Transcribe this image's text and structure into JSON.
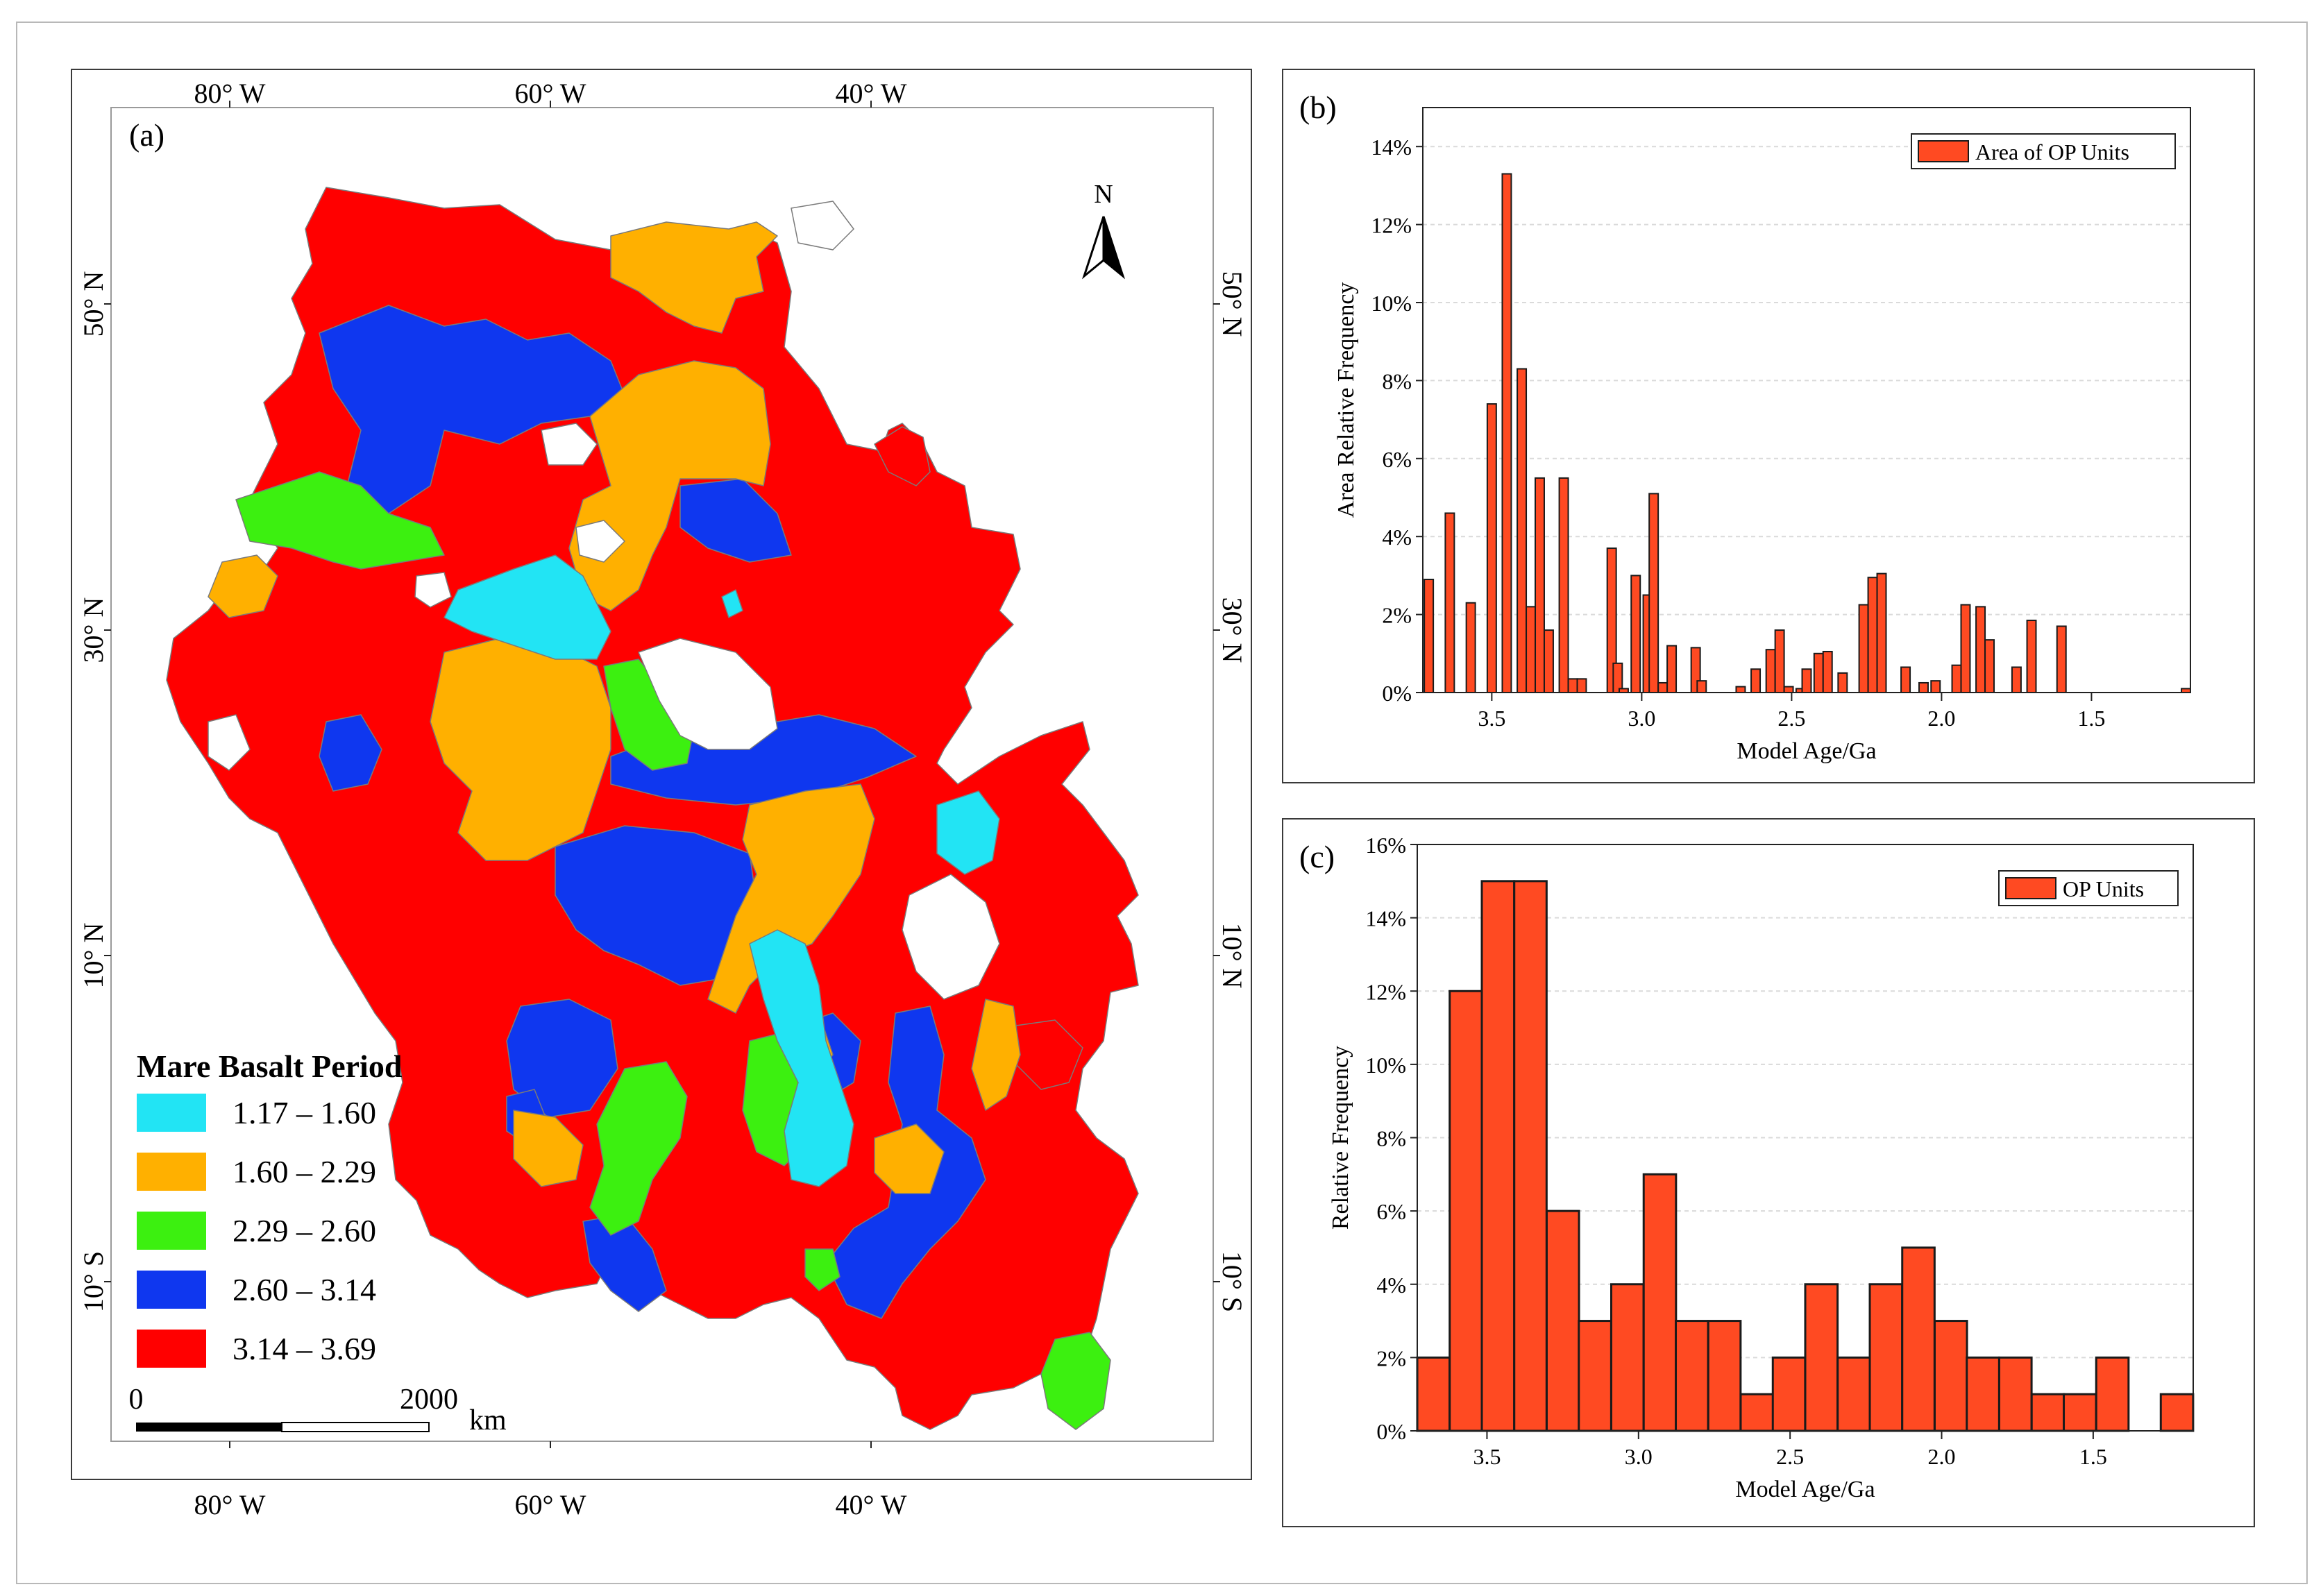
{
  "colors": {
    "bar_fill": "#ff4a22",
    "bar_stroke": "#1a1a1a",
    "grid": "#dadada",
    "period_1": "#22e4f4",
    "period_2": "#ffb000",
    "period_3": "#3cf010",
    "period_4": "#0f37ef",
    "period_5": "#ff0000"
  },
  "panel_a": {
    "label": "(a)",
    "top_lon_labels": [
      "80° W",
      "60° W",
      "40° W"
    ],
    "bottom_lon_labels": [
      "80° W",
      "60° W",
      "40° W"
    ],
    "lat_labels": [
      "50° N",
      "30° N",
      "10° N",
      "10° S"
    ],
    "north_label": "N",
    "legend_title": "Mare Basalt Period",
    "legend_items": [
      {
        "range": "1.17 – 1.60",
        "color": "#22e4f4"
      },
      {
        "range": "1.60 – 2.29",
        "color": "#ffb000"
      },
      {
        "range": "2.29 – 2.60",
        "color": "#3cf010"
      },
      {
        "range": "2.60 – 3.14",
        "color": "#0f37ef"
      },
      {
        "range": "3.14 – 3.69",
        "color": "#ff0000"
      }
    ],
    "scale_start": "0",
    "scale_end": "2000",
    "scale_unit": "km"
  },
  "chart_data": [
    {
      "panel": "(b)",
      "type": "bar",
      "ylabel": "Area Relative Frequency",
      "xlabel": "Model Age/Ga",
      "legend": "Area of OP Units",
      "legend_position": "top-right",
      "xlim": [
        3.73,
        1.17
      ],
      "ylim": [
        0,
        15
      ],
      "x_ticks": [
        {
          "value": 3.5,
          "label": "3.5"
        },
        {
          "value": 3.0,
          "label": "3.0"
        },
        {
          "value": 2.5,
          "label": "2.5"
        },
        {
          "value": 2.0,
          "label": "2.0"
        },
        {
          "value": 1.5,
          "label": "1.5"
        }
      ],
      "y_ticks": [
        {
          "value": 0,
          "label": "0%"
        },
        {
          "value": 2,
          "label": "2%"
        },
        {
          "value": 4,
          "label": "4%"
        },
        {
          "value": 6,
          "label": "6%"
        },
        {
          "value": 8,
          "label": "8%"
        },
        {
          "value": 10,
          "label": "10%"
        },
        {
          "value": 12,
          "label": "12%"
        },
        {
          "value": 14,
          "label": "14%"
        }
      ],
      "grid": true,
      "bar_width": 0.03,
      "x": [
        3.71,
        3.64,
        3.57,
        3.5,
        3.45,
        3.4,
        3.37,
        3.34,
        3.31,
        3.26,
        3.23,
        3.2,
        3.1,
        3.08,
        3.06,
        3.02,
        2.98,
        2.96,
        2.93,
        2.9,
        2.88,
        2.82,
        2.8,
        2.67,
        2.62,
        2.57,
        2.54,
        2.51,
        2.47,
        2.45,
        2.41,
        2.38,
        2.33,
        2.26,
        2.23,
        2.2,
        2.18,
        2.12,
        2.06,
        2.02,
        2.0,
        1.95,
        1.92,
        1.87,
        1.84,
        1.8,
        1.75,
        1.7,
        1.6,
        1.49,
        1.44,
        1.185
      ],
      "values": [
        2.9,
        4.6,
        2.3,
        7.4,
        13.3,
        8.3,
        2.2,
        5.5,
        1.6,
        5.5,
        0.35,
        0.35,
        3.7,
        0.75,
        0.1,
        3.0,
        2.5,
        5.1,
        0.25,
        1.2,
        0.0,
        1.15,
        0.3,
        0.15,
        0.6,
        1.1,
        1.6,
        0.15,
        0.1,
        0.6,
        1.0,
        1.05,
        0.5,
        2.25,
        2.95,
        3.05,
        0.0,
        0.65,
        0.25,
        0.3,
        0.0,
        0.7,
        2.25,
        2.2,
        1.35,
        0.0,
        0.65,
        1.85,
        1.7,
        0.0,
        0.0,
        0.1
      ]
    },
    {
      "panel": "(c)",
      "type": "bar",
      "ylabel": "Relative Frequency",
      "xlabel": "Model Age/Ga",
      "legend": "OP Units",
      "legend_position": "top-right",
      "xlim": [
        3.73,
        1.17
      ],
      "ylim": [
        0,
        16
      ],
      "x_ticks": [
        {
          "value": 3.5,
          "label": "3.5"
        },
        {
          "value": 3.0,
          "label": "3.0"
        },
        {
          "value": 2.5,
          "label": "2.5"
        },
        {
          "value": 2.0,
          "label": "2.0"
        },
        {
          "value": 1.5,
          "label": "1.5"
        }
      ],
      "y_ticks": [
        {
          "value": 0,
          "label": "0%"
        },
        {
          "value": 2,
          "label": "2%"
        },
        {
          "value": 4,
          "label": "4%"
        },
        {
          "value": 6,
          "label": "6%"
        },
        {
          "value": 8,
          "label": "8%"
        },
        {
          "value": 10,
          "label": "10%"
        },
        {
          "value": 12,
          "label": "12%"
        },
        {
          "value": 14,
          "label": "14%"
        },
        {
          "value": 16,
          "label": "16%"
        }
      ],
      "grid": true,
      "bin_width": 0.1067,
      "bin_left": [
        3.73,
        3.623,
        3.517,
        3.41,
        3.303,
        3.197,
        3.09,
        2.983,
        2.877,
        2.77,
        2.663,
        2.557,
        2.45,
        2.343,
        2.237,
        2.13,
        2.023,
        1.917,
        1.81,
        1.703,
        1.597,
        1.49,
        1.383,
        1.277
      ],
      "values": [
        2,
        12,
        15,
        15,
        6,
        3,
        4,
        7,
        3,
        3,
        1,
        2,
        4,
        2,
        4,
        5,
        3,
        2,
        2,
        1,
        1,
        2,
        0,
        1
      ]
    }
  ]
}
